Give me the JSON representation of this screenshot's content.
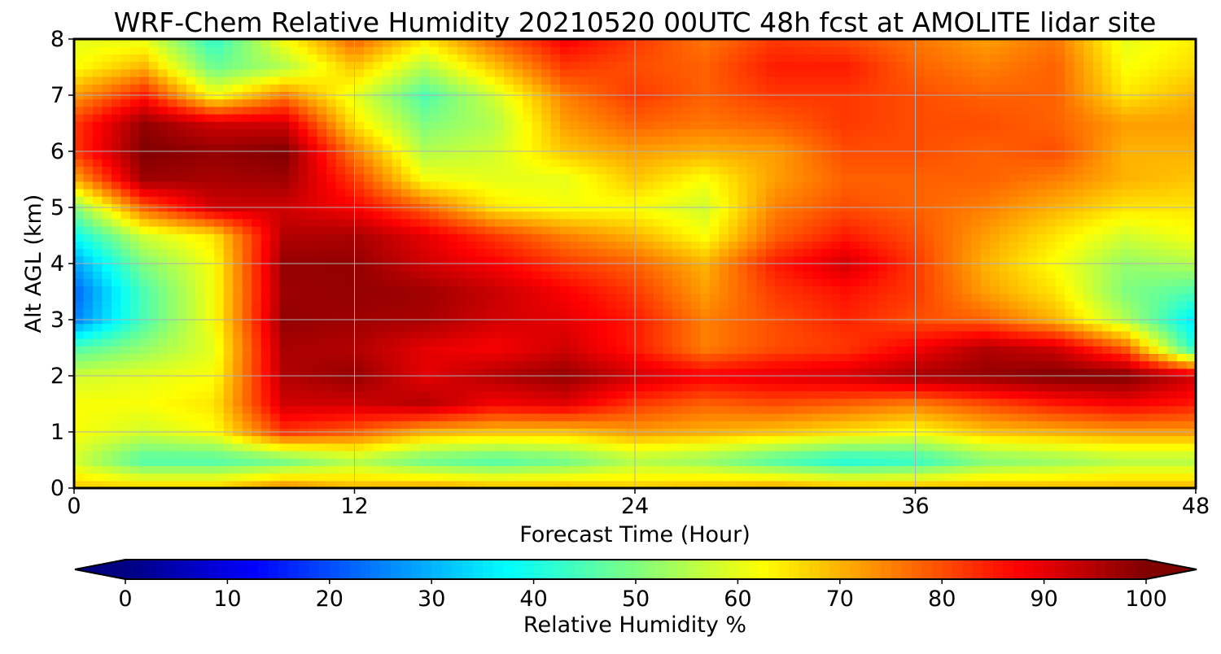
{
  "chart_data": {
    "type": "heatmap",
    "title": "WRF-Chem Relative Humidity 20210520 00UTC 48h fcst at AMOLITE lidar site",
    "xlabel": "Forecast Time (Hour)",
    "ylabel": "Alt AGL (km)",
    "xlim": [
      0,
      48
    ],
    "ylim": [
      0,
      8
    ],
    "x_ticks": [
      0,
      12,
      24,
      36,
      48
    ],
    "y_ticks": [
      0,
      1,
      2,
      3,
      4,
      5,
      6,
      7,
      8
    ],
    "grid": true,
    "colormap": "jet",
    "colorbar": {
      "label": "Relative Humidity %",
      "range": [
        0,
        100
      ],
      "ticks": [
        0,
        10,
        20,
        30,
        40,
        50,
        60,
        70,
        80,
        90,
        100
      ],
      "extend": "both",
      "orientation": "horizontal"
    },
    "x": [
      0,
      3,
      6,
      9,
      12,
      15,
      18,
      21,
      24,
      27,
      30,
      33,
      36,
      39,
      42,
      45,
      48
    ],
    "y": [
      0,
      0.5,
      1,
      1.5,
      2,
      2.5,
      3,
      3.5,
      4,
      4.5,
      5,
      5.5,
      6,
      6.5,
      7,
      7.5,
      8
    ],
    "values": [
      [
        68,
        68,
        68,
        75,
        70,
        72,
        70,
        70,
        68,
        70,
        72,
        70,
        70,
        70,
        70,
        70,
        70
      ],
      [
        58,
        45,
        45,
        48,
        55,
        48,
        45,
        48,
        55,
        52,
        45,
        40,
        42,
        50,
        52,
        55,
        55
      ],
      [
        62,
        58,
        62,
        82,
        78,
        70,
        68,
        68,
        72,
        70,
        68,
        65,
        62,
        68,
        70,
        72,
        72
      ],
      [
        62,
        62,
        65,
        92,
        92,
        95,
        88,
        90,
        82,
        78,
        80,
        78,
        75,
        80,
        85,
        88,
        85
      ],
      [
        58,
        60,
        62,
        95,
        98,
        90,
        95,
        98,
        92,
        88,
        90,
        92,
        96,
        98,
        100,
        100,
        92
      ],
      [
        45,
        52,
        60,
        96,
        95,
        90,
        88,
        92,
        85,
        75,
        80,
        82,
        88,
        95,
        92,
        78,
        40
      ],
      [
        25,
        45,
        62,
        98,
        97,
        96,
        92,
        90,
        85,
        75,
        80,
        84,
        80,
        78,
        70,
        55,
        35
      ],
      [
        22,
        45,
        62,
        97,
        98,
        97,
        93,
        88,
        82,
        72,
        82,
        86,
        82,
        72,
        65,
        50,
        45
      ],
      [
        28,
        50,
        62,
        98,
        98,
        92,
        88,
        82,
        78,
        70,
        85,
        92,
        82,
        70,
        62,
        52,
        55
      ],
      [
        38,
        58,
        65,
        95,
        96,
        90,
        82,
        75,
        70,
        62,
        78,
        85,
        80,
        72,
        65,
        58,
        62
      ],
      [
        50,
        78,
        92,
        92,
        88,
        78,
        65,
        62,
        62,
        58,
        75,
        80,
        78,
        75,
        70,
        65,
        65
      ],
      [
        70,
        97,
        96,
        97,
        82,
        62,
        60,
        60,
        68,
        62,
        72,
        78,
        78,
        78,
        75,
        70,
        68
      ],
      [
        82,
        100,
        98,
        100,
        75,
        55,
        58,
        68,
        72,
        70,
        72,
        80,
        80,
        78,
        80,
        70,
        70
      ],
      [
        82,
        98,
        92,
        92,
        65,
        50,
        55,
        72,
        78,
        76,
        78,
        82,
        80,
        80,
        78,
        72,
        72
      ],
      [
        72,
        85,
        62,
        75,
        60,
        45,
        58,
        75,
        82,
        78,
        82,
        82,
        80,
        78,
        78,
        65,
        70
      ],
      [
        62,
        70,
        48,
        55,
        68,
        55,
        68,
        82,
        80,
        78,
        85,
        85,
        78,
        75,
        78,
        62,
        66
      ],
      [
        60,
        60,
        42,
        62,
        78,
        65,
        78,
        88,
        82,
        76,
        82,
        80,
        76,
        72,
        76,
        60,
        64
      ]
    ]
  }
}
